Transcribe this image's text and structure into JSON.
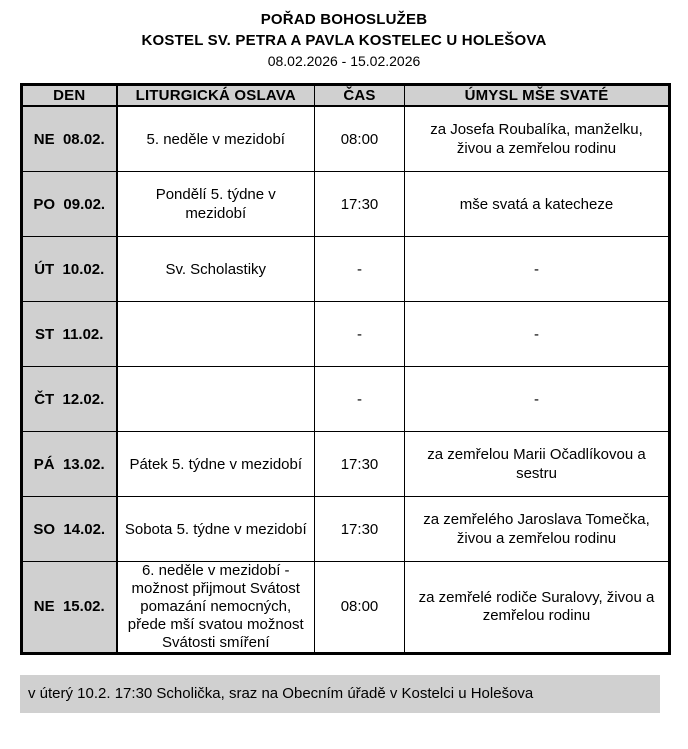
{
  "page": {
    "title_line1": "POŘAD BOHOSLUŽEB",
    "title_line2": "KOSTEL SV. PETRA A PAVLA KOSTELEC U HOLEŠOVA",
    "date_range": "08.02.2026 - 15.02.2026"
  },
  "table": {
    "headers": {
      "den": "DEN",
      "oslava": "LITURGICKÁ OSLAVA",
      "cas": "ČAS",
      "umysl": "ÚMYSL MŠE SVATÉ"
    },
    "rows": [
      {
        "den": "NE  08.02.",
        "oslava": "5. neděle v mezidobí",
        "cas": "08:00",
        "umysl": "za Josefa Roubalíka, manželku, živou a zemřelou rodinu"
      },
      {
        "den": "PO  09.02.",
        "oslava": "Pondělí 5. týdne v mezidobí",
        "cas": "17:30",
        "umysl": "mše svatá a katecheze"
      },
      {
        "den": "ÚT  10.02.",
        "oslava": "Sv. Scholastiky",
        "cas": "-",
        "umysl": "-"
      },
      {
        "den": "ST  11.02.",
        "oslava": "",
        "cas": "-",
        "umysl": "-"
      },
      {
        "den": "ČT  12.02.",
        "oslava": "",
        "cas": "-",
        "umysl": "-"
      },
      {
        "den": "PÁ  13.02.",
        "oslava": "Pátek 5. týdne v mezidobí",
        "cas": "17:30",
        "umysl": "za zemřelou Marii Očadlíkovou a sestru"
      },
      {
        "den": "SO  14.02.",
        "oslava": "Sobota 5. týdne v mezidobí",
        "cas": "17:30",
        "umysl": "za zemřelého Jaroslava Tomečka, živou a zemřelou rodinu"
      },
      {
        "den": "NE  15.02.",
        "oslava": "6. neděle v mezidobí - možnost přijmout Svátost pomazání nemocných, přede mší svatou možnost Svátosti smíření",
        "cas": "08:00",
        "umysl": "za zemřelé rodiče Suralovy, živou a zemřelou rodinu"
      }
    ]
  },
  "footer": {
    "note": "v úterý 10.2. 17:30 Scholička, sraz na Obecním úřadě v Kostelci u Holešova"
  },
  "colors": {
    "cell_gray": "#d0d0d0",
    "border": "#000000"
  }
}
